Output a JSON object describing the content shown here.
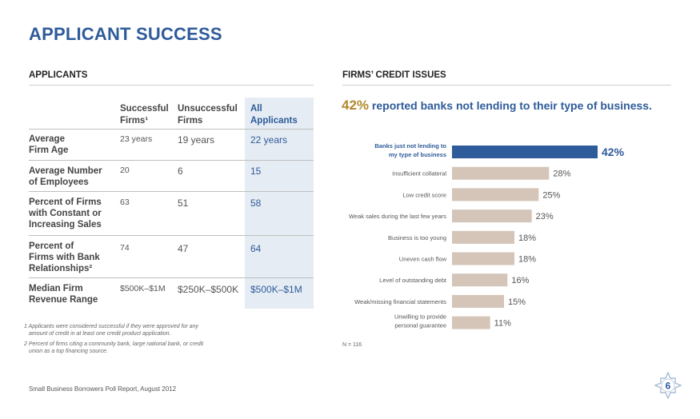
{
  "page": {
    "title": "APPLICANT SUCCESS",
    "source": "Small Business Borrowers Poll Report, August 2012",
    "page_number": "6"
  },
  "applicants": {
    "heading": "APPLICANTS",
    "columns": [
      {
        "line1": "Successful",
        "line2": "Firms¹"
      },
      {
        "line1": "Unsuccessful",
        "line2": "Firms"
      },
      {
        "line1": "All",
        "line2": "Applicants"
      }
    ],
    "rows": [
      {
        "label1": "Average",
        "label2": "Firm Age",
        "label3": "",
        "successful": "23 years",
        "unsuccessful": "19 years",
        "all": "22 years"
      },
      {
        "label1": "Average Number",
        "label2": "of Employees",
        "label3": "",
        "successful": "20",
        "unsuccessful": "6",
        "all": "15"
      },
      {
        "label1": "Percent of Firms",
        "label2": "with Constant or",
        "label3": "Increasing Sales",
        "successful": "63",
        "unsuccessful": "51",
        "all": "58"
      },
      {
        "label1": "Percent of",
        "label2": "Firms with Bank",
        "label3": "Relationships²",
        "successful": "74",
        "unsuccessful": "47",
        "all": "64"
      },
      {
        "label1": "Median Firm",
        "label2": "Revenue Range",
        "label3": "",
        "successful": "$500K–$1M",
        "unsuccessful": "$250K–$500K",
        "all": "$500K–$1M"
      }
    ],
    "footnotes": [
      {
        "line1": "1 Applicants were considered successful if they were approved for any",
        "line2": "amount of credit in at least one credit product application."
      },
      {
        "line1": "2 Percent of firms citing a community bank, large national bank, or credit",
        "line2": "union as a top financing source."
      }
    ]
  },
  "credit_issues": {
    "heading": "FIRMS’ CREDIT ISSUES",
    "headline_pct": "42%",
    "headline_text": " reported banks not lending to their type of business.",
    "n_label": "N = 116"
  },
  "colors": {
    "highlight_bar": "#2e5b9a",
    "bar": "#d5c5b8",
    "accent": "#2e5b9a"
  },
  "chart_data": {
    "type": "bar",
    "orientation": "horizontal",
    "categories": [
      [
        "Banks just not lending to",
        "my type of business"
      ],
      [
        "Insufficient collateral"
      ],
      [
        "Low credit score"
      ],
      [
        "Weak sales during the last few years"
      ],
      [
        "Business is too young"
      ],
      [
        "Uneven cash flow"
      ],
      [
        "Level of outstanding debt"
      ],
      [
        "Weak/missing financial statements"
      ],
      [
        "Unwilling to provide",
        "personal guarantee"
      ]
    ],
    "values": [
      42,
      28,
      25,
      23,
      18,
      18,
      16,
      15,
      11
    ],
    "value_labels": [
      "42%",
      "28%",
      "25%",
      "23%",
      "18%",
      "18%",
      "16%",
      "15%",
      "11%"
    ],
    "highlight_index": 0,
    "xlim": [
      0,
      42
    ]
  }
}
